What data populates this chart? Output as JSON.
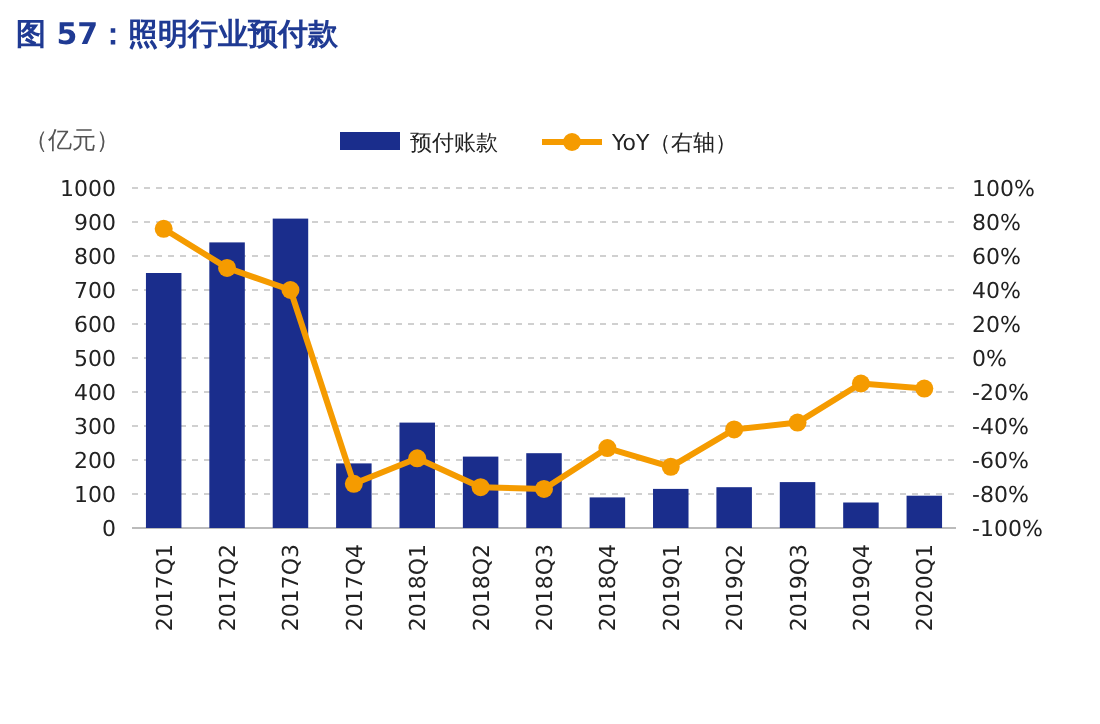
{
  "chart_data": {
    "type": "bar",
    "title": "图 57：照明行业预付款",
    "ylabel": "（亿元）",
    "categories": [
      "2017Q1",
      "2017Q2",
      "2017Q3",
      "2017Q4",
      "2018Q1",
      "2018Q2",
      "2018Q3",
      "2018Q4",
      "2019Q1",
      "2019Q2",
      "2019Q3",
      "2019Q4",
      "2020Q1"
    ],
    "series": [
      {
        "name": "预付账款",
        "color": "#1a2d8c",
        "values": [
          750,
          840,
          910,
          190,
          310,
          210,
          220,
          90,
          115,
          120,
          135,
          75,
          95
        ]
      },
      {
        "name": "YoY（右轴）",
        "type": "line",
        "axis": "y2",
        "color": "#f59b00",
        "marker": "circle",
        "values": [
          76,
          53,
          40,
          -74,
          -59,
          -76,
          -77,
          -53,
          -64,
          -42,
          -38,
          -15,
          -18
        ]
      }
    ],
    "ylim": [
      0,
      1000
    ],
    "yticks": [
      0,
      100,
      200,
      300,
      400,
      500,
      600,
      700,
      800,
      900,
      1000
    ],
    "y2lim": [
      -100,
      100
    ],
    "y2ticks": [
      {
        "value": -100,
        "label": "-100%"
      },
      {
        "value": -80,
        "label": "-80%"
      },
      {
        "value": -60,
        "label": "-60%"
      },
      {
        "value": -40,
        "label": "-40%"
      },
      {
        "value": -20,
        "label": "-20%"
      },
      {
        "value": 0,
        "label": "0%"
      },
      {
        "value": 20,
        "label": "20%"
      },
      {
        "value": 40,
        "label": "40%"
      },
      {
        "value": 60,
        "label": "60%"
      },
      {
        "value": 80,
        "label": "80%"
      },
      {
        "value": 100,
        "label": "100%"
      }
    ],
    "grid": "y",
    "legend": "top"
  }
}
